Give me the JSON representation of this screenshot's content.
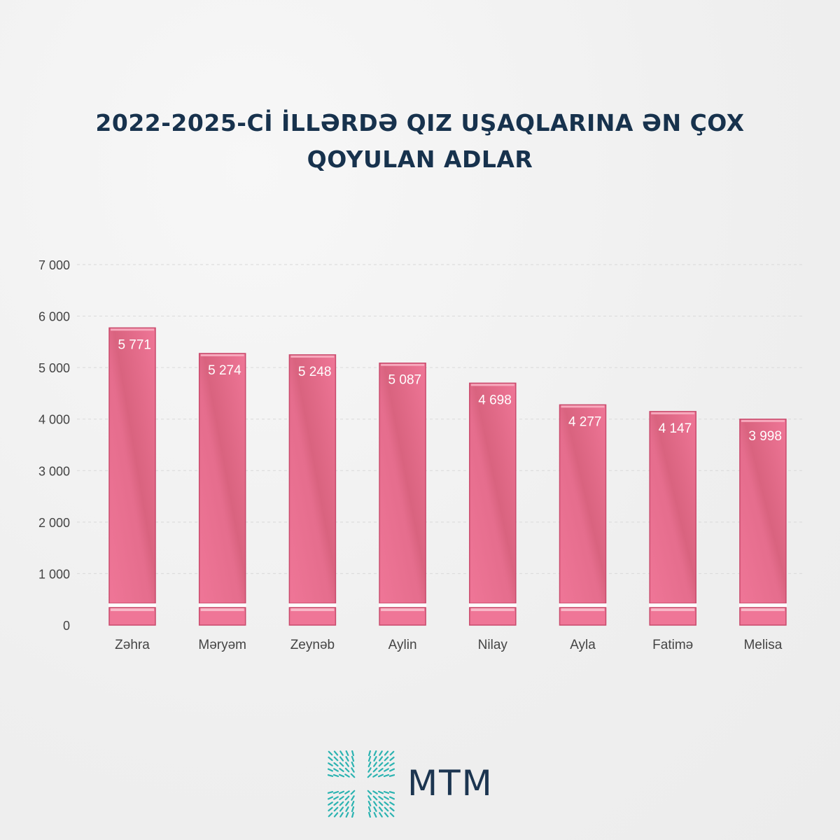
{
  "title_line1": "2022-2025-Cİ İLLƏRDƏ QIZ UŞAQLARINA ƏN ÇOX",
  "title_line2": "QOYULAN ADLAR",
  "brand": {
    "name": "MTM",
    "accent": "#2bb3b1",
    "text_color": "#1c3550"
  },
  "colors": {
    "bar": "#ef7697",
    "bar_dark": "#d95a7d",
    "bar_edge": "#c94a6c",
    "title": "#17324d",
    "axis_text": "#444444",
    "value_text": "#ffffff"
  },
  "chart_data": {
    "type": "bar",
    "title": "2022-2025-Cİ İLLƏRDƏ QIZ UŞAQLARINA ƏN ÇOX QOYULAN ADLAR",
    "categories": [
      "Zəhra",
      "Məryəm",
      "Zeynəb",
      "Aylin",
      "Nilay",
      "Ayla",
      "Fatimə",
      "Melisa"
    ],
    "values": [
      5771,
      5274,
      5248,
      5087,
      4698,
      4277,
      4147,
      3998
    ],
    "value_labels": [
      "5 771",
      "5 274",
      "5 248",
      "5 087",
      "4 698",
      "4 277",
      "4 147",
      "3 998"
    ],
    "ylim": [
      0,
      7000
    ],
    "yticks": [
      0,
      1000,
      2000,
      3000,
      4000,
      5000,
      6000,
      7000
    ],
    "ytick_labels": [
      "0",
      "1 000",
      "2 000",
      "3 000",
      "4 000",
      "5 000",
      "6 000",
      "7 000"
    ],
    "xlabel": "",
    "ylabel": "",
    "grid": true,
    "legend": "none"
  }
}
